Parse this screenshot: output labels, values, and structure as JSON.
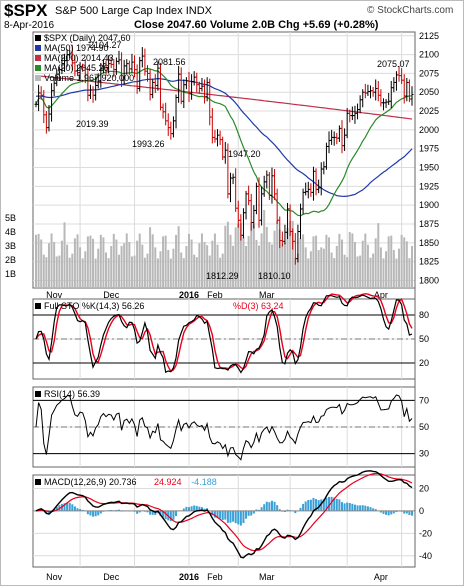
{
  "header": {
    "symbol": "$SPX",
    "name": "S&P 500 Large Cap Index",
    "exchange": "INDX",
    "date": "8-Apr-2016",
    "close_label": "Close",
    "close": "2047.60",
    "volume_label": "Volume",
    "volume": "2.0B",
    "chg_label": "Chg",
    "chg": "+5.69 (+0.28%)",
    "watermark": "© StockCharts.com"
  },
  "colors": {
    "up": "#000000",
    "down": "#cc0000",
    "ma50": "#1f3aa8",
    "ma200": "#c0304a",
    "ma20": "#2a8a2a",
    "volume": "#b8b8b8",
    "k_line": "#000000",
    "d_line": "#e8001c",
    "rsi": "#000000",
    "macd": "#000000",
    "signal": "#e8001c",
    "hist": "#3aa0d8",
    "grid": "#dcdcdc"
  },
  "chart_data": [
    {
      "type": "line",
      "panel": "price",
      "legend": [
        {
          "label": "$SPX (Daily) 2047.60",
          "color": "#000000"
        },
        {
          "label": "MA(50) 1974.90",
          "color": "#1f3aa8"
        },
        {
          "label": "MA(200) 2014.43",
          "color": "#c0304a"
        },
        {
          "label": "MA(20) 2045.26",
          "color": "#2a8a2a"
        },
        {
          "label": "Volume 1,967,920,000",
          "color": "#b8b8b8"
        }
      ],
      "ylim": [
        1790,
        2130
      ],
      "yticks": [
        1800,
        1825,
        1850,
        1875,
        1900,
        1925,
        1950,
        1975,
        2000,
        2025,
        2050,
        2075,
        2100,
        2125
      ],
      "volume_ticks": [
        "1B",
        "2B",
        "3B",
        "4B",
        "5B"
      ],
      "annotations": [
        "2104.27",
        "2081.56",
        "2019.39",
        "1993.26",
        "1947.20",
        "2075.07",
        "1812.29",
        "1810.10"
      ],
      "x_labels": [
        "Nov",
        "Dec",
        "2016",
        "Feb",
        "Mar",
        "Apr"
      ],
      "close": [
        2034,
        2049,
        2046,
        2020,
        2003,
        2021,
        2052,
        2062,
        2074,
        2080,
        2088,
        2092,
        2100,
        2101,
        2089,
        2078,
        2076,
        2084,
        2083,
        2073,
        2046,
        2053,
        2046,
        2059,
        2065,
        2081,
        2088,
        2083,
        2088,
        2087,
        2080,
        2091,
        2093,
        2066,
        2085,
        2088,
        2081,
        2090,
        2080,
        2055,
        2092,
        2098,
        2078,
        2075,
        2047,
        2063,
        2059,
        2082,
        2030,
        2024,
        2012,
        2003,
        1995,
        2012,
        2043,
        2074,
        2038,
        2060,
        2065,
        2048,
        2064,
        2070,
        2060,
        2055,
        2058,
        2044,
        2063,
        2017,
        1990,
        1988,
        1993,
        1987,
        1964,
        1973,
        1915,
        1936,
        1937,
        1896,
        1880,
        1860,
        1890,
        1915,
        1906,
        1877,
        1893,
        1925,
        1880,
        1915,
        1931,
        1940,
        1913,
        1939,
        1915,
        1880,
        1853,
        1852,
        1864,
        1895,
        1865,
        1852,
        1829,
        1865,
        1895,
        1917,
        1918,
        1921,
        1917,
        1945,
        1921,
        1923,
        1948,
        1951,
        1978,
        1986,
        1990,
        1990,
        1989,
        2002,
        1979,
        1993,
        2022,
        2019,
        2019,
        2022,
        2027,
        2040,
        2050,
        2049,
        2051,
        2052,
        2050,
        2055,
        2046,
        2036,
        2036,
        2037,
        2038,
        2056,
        2063,
        2073,
        2072,
        2066,
        2045,
        2063,
        2041,
        2047
      ],
      "ma50_end": 1974.9,
      "ma200_end": 2014.43,
      "ma20_end": 2045.26
    },
    {
      "type": "line",
      "panel": "stochastic",
      "legend": [
        {
          "label": "Full STO %K(14,3) 56.26",
          "color": "#000000"
        },
        {
          "label": "%D(3) 63.24",
          "color": "#e8001c"
        }
      ],
      "ylim": [
        0,
        100
      ],
      "yticks": [
        20,
        50,
        80
      ],
      "k_end": 56.26,
      "d_end": 63.24
    },
    {
      "type": "line",
      "panel": "rsi",
      "legend": [
        {
          "label": "RSI(14) 56.39",
          "color": "#000000"
        }
      ],
      "ylim": [
        20,
        80
      ],
      "yticks": [
        30,
        50,
        70
      ],
      "rsi_end": 56.39
    },
    {
      "type": "line",
      "panel": "macd",
      "legend": [
        {
          "label": "MACD(12,26,9) 20.736",
          "color": "#000000"
        },
        {
          "label": "24.924",
          "color": "#e8001c"
        },
        {
          "label": "-4.188",
          "color": "#3aa0d8"
        }
      ],
      "ylim": [
        -50,
        32
      ],
      "yticks": [
        -40,
        -20,
        0,
        20
      ],
      "macd_end": 20.736,
      "signal_end": 24.924,
      "hist_end": -4.188
    }
  ]
}
